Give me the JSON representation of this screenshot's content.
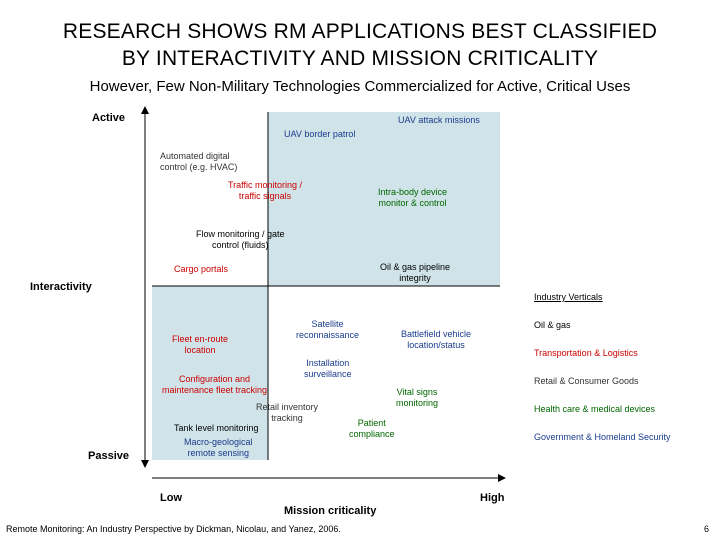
{
  "title_line1": "RESEARCH SHOWS RM APPLICATIONS BEST CLASSIFIED",
  "title_line2": "BY INTERACTIVITY AND MISSION CRITICALITY",
  "subtitle": "However, Few Non-Military Technologies Commercialized for Active, Critical Uses",
  "axes": {
    "y_title": "Interactivity",
    "y_top": "Active",
    "y_bottom": "Passive",
    "x_title": "Mission criticality",
    "x_left": "Low",
    "x_right": "High"
  },
  "items": {
    "uav_attack": "UAV attack missions",
    "uav_border": "UAV border patrol",
    "automated_1": "Automated digital",
    "automated_2": "control (e.g. HVAC)",
    "traffic_1": "Traffic monitoring /",
    "traffic_2": "traffic signals",
    "intrabody_1": "Intra-body device",
    "intrabody_2": "monitor & control",
    "flow_1": "Flow monitoring / gate",
    "flow_2": "control (fluids)",
    "oilgas_1": "Oil & gas pipeline",
    "oilgas_2": "integrity",
    "cargo": "Cargo portals",
    "satellite_1": "Satellite",
    "satellite_2": "reconnaissance",
    "battlefield_1": "Battlefield vehicle",
    "battlefield_2": "location/status",
    "fleet_1": "Fleet en-route",
    "fleet_2": "location",
    "installation_1": "Installation",
    "installation_2": "surveillance",
    "config_1": "Configuration and",
    "config_2": "maintenance fleet tracking",
    "vital_1": "Vital signs",
    "vital_2": "monitoring",
    "retail_1": "Retail inventory",
    "retail_2": "tracking",
    "patient_1": "Patient",
    "patient_2": "compliance",
    "tank": "Tank level monitoring",
    "macro_1": "Macro-geological",
    "macro_2": "remote sensing"
  },
  "legend": {
    "title": "Industry Verticals",
    "entries": [
      {
        "label": "Oil & gas",
        "color": "#000000"
      },
      {
        "label": "Transportation & Logistics",
        "color": "#cc0000"
      },
      {
        "label": "Retail & Consumer Goods",
        "color": "#333333"
      },
      {
        "label": "Health care & medical devices",
        "color": "#006600"
      },
      {
        "label": "Government & Homeland Security",
        "color": "#1a3c8c"
      }
    ]
  },
  "footer": {
    "source": "Remote Monitoring: An Industry Perspective by Dickman, Nicolau, and Yanez, 2006.",
    "page": "6"
  },
  "colors": {
    "quadrant_fill": "#cfe3e8",
    "red": "#cc0000",
    "blue": "#1a3c8c",
    "green": "#006600"
  }
}
